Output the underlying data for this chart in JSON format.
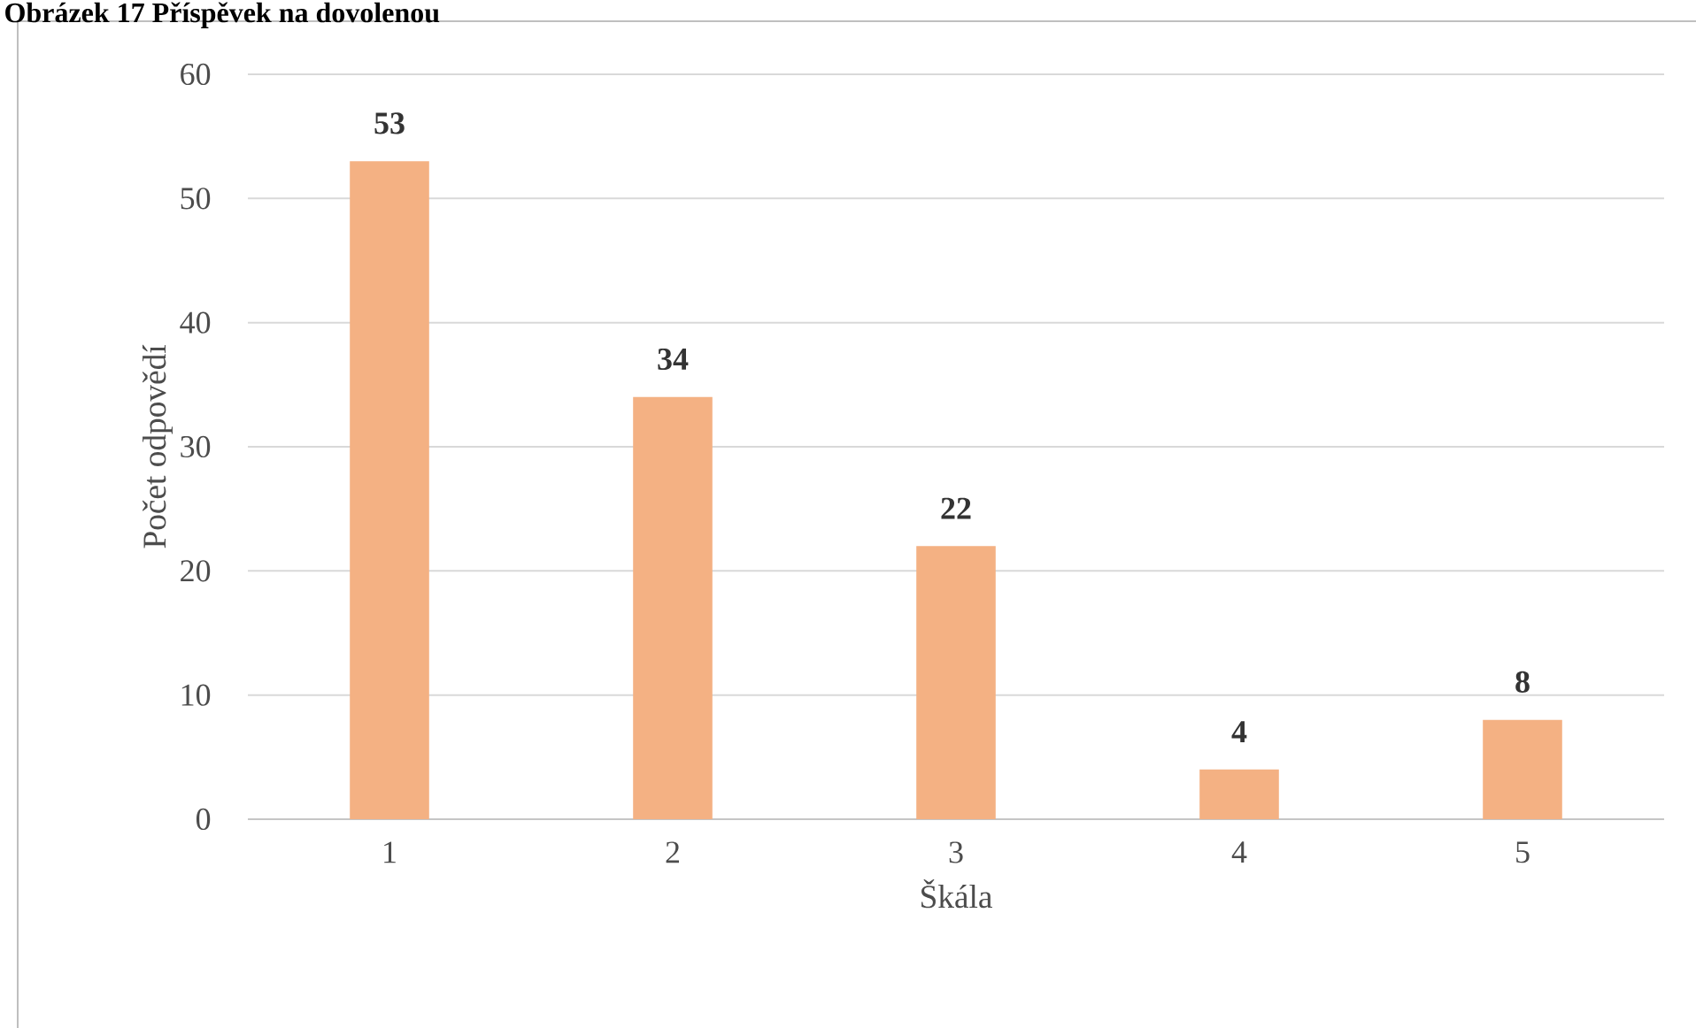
{
  "chart_data": {
    "type": "bar",
    "title": "Obrázek 17 Příspěvek na dovolenou",
    "xlabel": "Škála",
    "ylabel": "Počet odpovědí",
    "categories": [
      "1",
      "2",
      "3",
      "4",
      "5"
    ],
    "values": [
      53,
      34,
      22,
      4,
      8
    ],
    "color": "#f4b183",
    "ylim": [
      0,
      60
    ],
    "yticks": [
      0,
      10,
      20,
      30,
      40,
      50,
      60
    ],
    "grid": "y",
    "data_labels": true
  }
}
